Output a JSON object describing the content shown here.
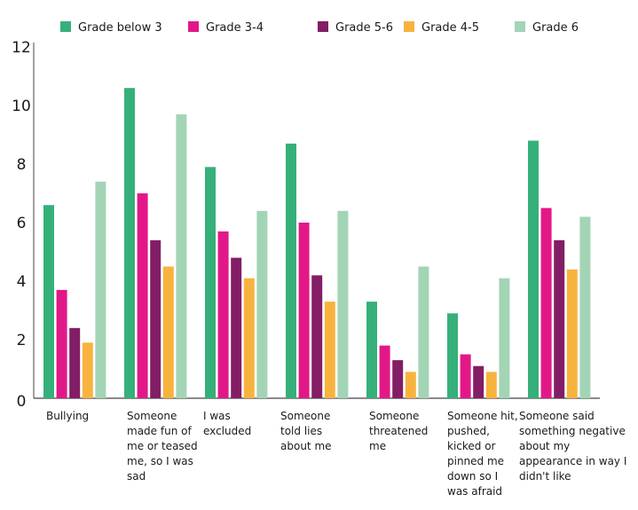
{
  "chart_data": {
    "type": "bar",
    "title": "",
    "xlabel": "",
    "ylabel": "",
    "ylim": [
      0,
      12
    ],
    "yticks": [
      "0",
      "2",
      "4",
      "6",
      "8",
      "10",
      "12"
    ],
    "grid": false,
    "legend_position": "top",
    "categories": [
      "Bullying",
      "Someone made fun of me or teased me, so I was sad",
      "I was excluded",
      "Someone told lies about me",
      "Someone threatened me",
      "Someone hit, pushed, kicked or pinned me down so I was afraid",
      "Someone said something negative about my appearance in way I didn't like"
    ],
    "series": [
      {
        "name": "Grade below 3",
        "color": "#36b07a",
        "values": [
          6.6,
          10.6,
          7.9,
          8.7,
          3.3,
          2.9,
          8.8
        ]
      },
      {
        "name": "Grade 3-4",
        "color": "#e31888",
        "values": [
          3.7,
          7.0,
          5.7,
          6.0,
          1.8,
          1.5,
          6.5
        ]
      },
      {
        "name": "Grade 4-5",
        "color": "#f8b33f",
        "values": [
          1.9,
          4.5,
          4.1,
          3.3,
          0.9,
          0.9,
          4.4
        ]
      },
      {
        "name": "Grade 5-6",
        "color": "#821d66",
        "values": [
          2.4,
          5.4,
          4.8,
          4.2,
          1.3,
          1.1,
          5.4
        ]
      },
      {
        "name": "Grade 6",
        "color": "#a3d4b6",
        "values": [
          7.4,
          9.7,
          6.4,
          6.4,
          4.5,
          4.1,
          6.2
        ]
      }
    ]
  }
}
